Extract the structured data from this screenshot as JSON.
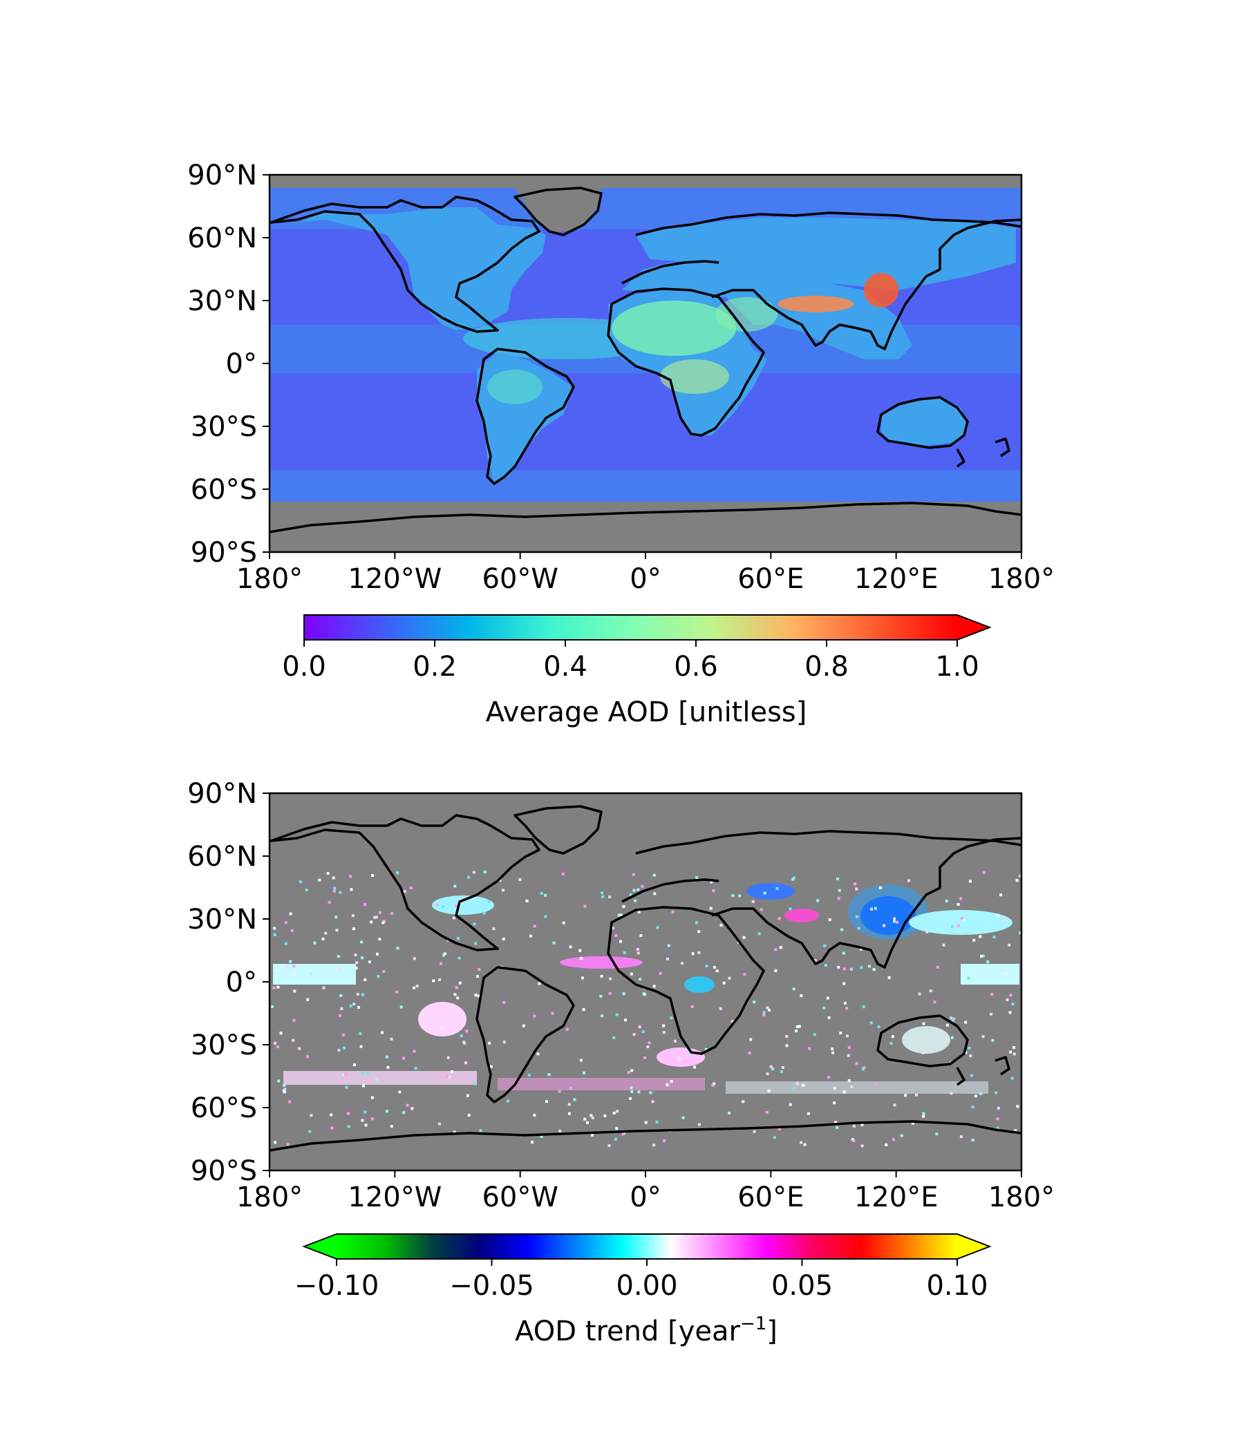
{
  "maps": [
    {
      "id": "average",
      "lat_ticks": [
        "90°N",
        "60°N",
        "30°N",
        "0°",
        "30°S",
        "60°S",
        "90°S"
      ],
      "lon_ticks": [
        "180°",
        "120°W",
        "60°W",
        "0°",
        "60°E",
        "120°E",
        "180°"
      ],
      "colormap": "rainbow",
      "colorbar": {
        "ticks": [
          "0.0",
          "0.2",
          "0.4",
          "0.6",
          "0.8",
          "1.0"
        ],
        "label": "Average AOD [unitless]",
        "extend": "max",
        "colors": [
          "#7f00ff",
          "#3f5ff9",
          "#00b4eb",
          "#3df4d0",
          "#7fffb4",
          "#c0f38d",
          "#ffb360",
          "#ff5b2f",
          "#ff0000"
        ]
      },
      "missing_color": "#808080",
      "ocean_color": "#4a6ef5"
    },
    {
      "id": "trend",
      "lat_ticks": [
        "90°N",
        "60°N",
        "30°N",
        "0°",
        "30°S",
        "60°S",
        "90°S"
      ],
      "lon_ticks": [
        "180°",
        "120°W",
        "60°W",
        "0°",
        "60°E",
        "120°E",
        "180°"
      ],
      "colormap": "diverging",
      "colorbar": {
        "ticks": [
          "−0.10",
          "−0.05",
          "0.00",
          "0.05",
          "0.10"
        ],
        "label_main": "AOD trend [year",
        "label_sup": "−1",
        "label_end": "]",
        "extend": "both",
        "colors": [
          "#00ff00",
          "#00c000",
          "#004040",
          "#000080",
          "#0000ff",
          "#0080ff",
          "#00ffff",
          "#ffffff",
          "#ff80ff",
          "#ff00ff",
          "#ff0060",
          "#ff0000",
          "#ff8000",
          "#ffff00"
        ]
      },
      "missing_color": "#808080"
    }
  ]
}
